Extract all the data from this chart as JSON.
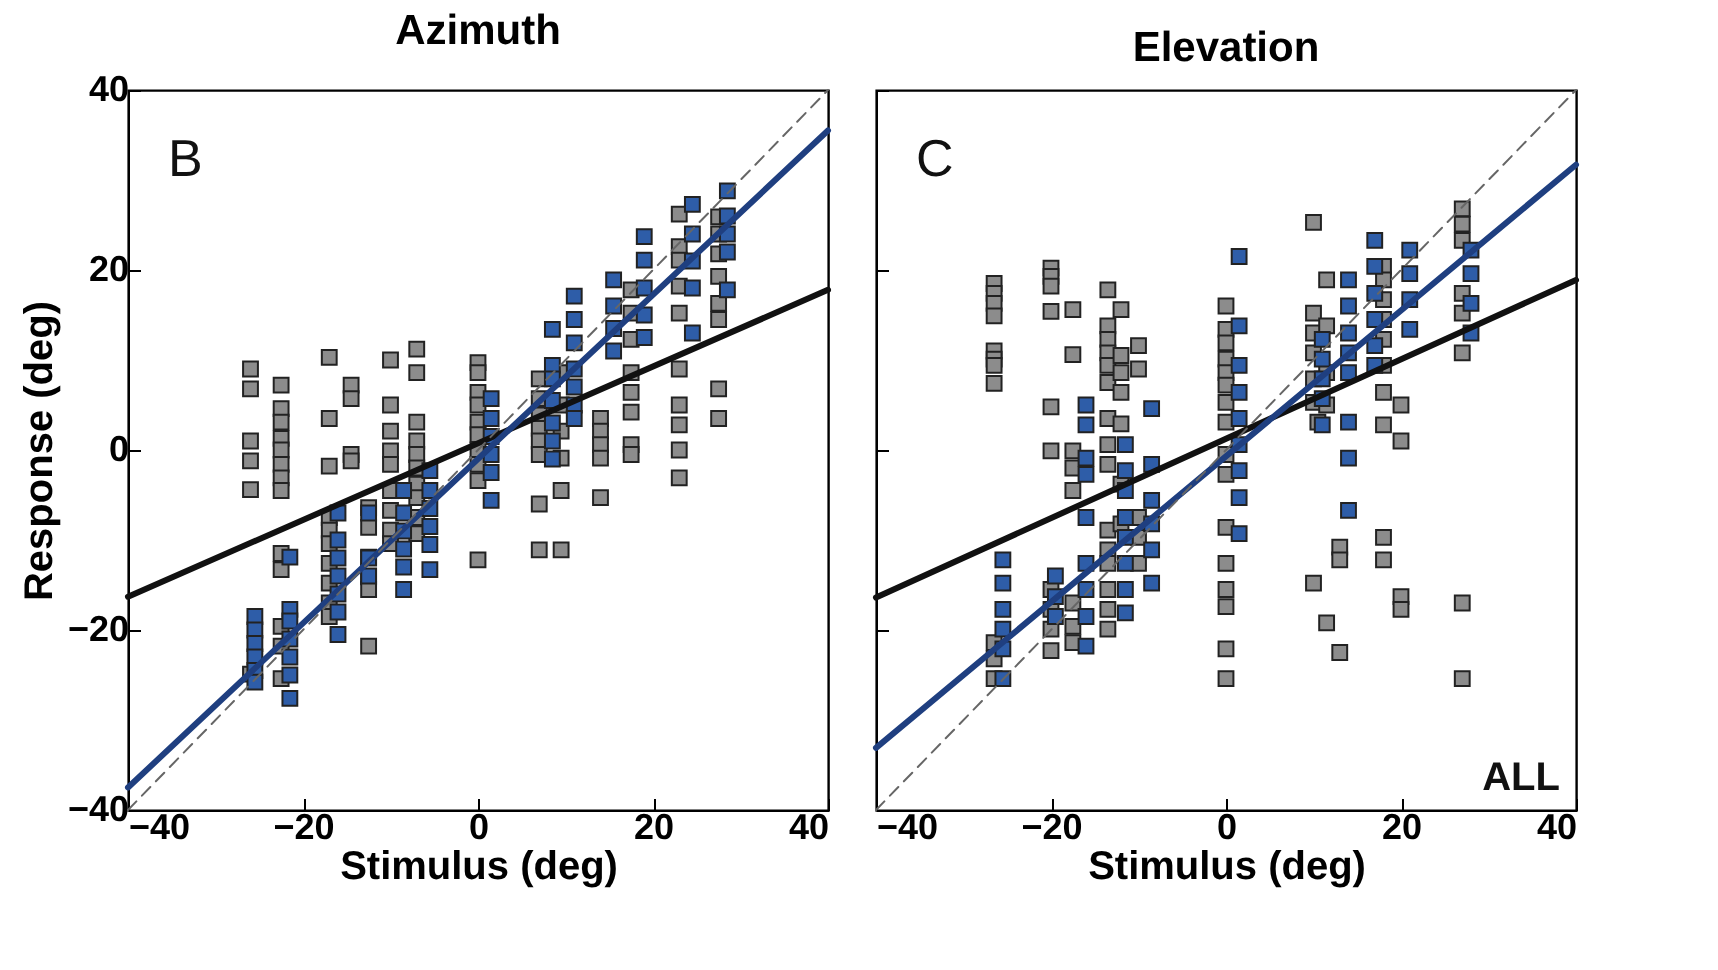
{
  "chart_data": [
    {
      "type": "scatter",
      "title": "Azimuth",
      "xlabel": "Stimulus (deg)",
      "ylabel": "Response (deg)",
      "xlim": [
        -40,
        40
      ],
      "ylim": [
        -40,
        40
      ],
      "xticks": [
        -40,
        -20,
        0,
        20,
        40
      ],
      "yticks": [
        -40,
        -20,
        0,
        20,
        40
      ],
      "grid": false,
      "annotations": [
        "B"
      ],
      "series": [
        {
          "marker": "square",
          "color": "#8c8c8c",
          "x": [
            -26,
            -26,
            -26,
            -26,
            -26,
            -26,
            -22.5,
            -22.5,
            -22.5,
            -22.5,
            -22.5,
            -22.5,
            -22.5,
            -22.5,
            -22.5,
            -22.5,
            -22.5,
            -22.5,
            -22.5,
            -17,
            -17,
            -17,
            -17,
            -17,
            -17,
            -17,
            -17,
            -17,
            -17,
            -14.5,
            -14.5,
            -14.5,
            -14.5,
            -12.5,
            -12.5,
            -12.5,
            -12.5,
            -12.5,
            -12.5,
            -10,
            -10,
            -10,
            -10,
            -10,
            -10,
            -10,
            -10,
            -10,
            -7,
            -7,
            -7,
            -7,
            -7,
            -7,
            -7,
            -7,
            -7,
            -7,
            0,
            0,
            0,
            0,
            0,
            0,
            0,
            0,
            0,
            0,
            7,
            7,
            7,
            7,
            7,
            7,
            7,
            7,
            9.5,
            9.5,
            9.5,
            9.5,
            9.5,
            9.5,
            14,
            14,
            14,
            14,
            14,
            17.5,
            17.5,
            17.5,
            17.5,
            17.5,
            17.5,
            17.5,
            17.5,
            23,
            23,
            23,
            23,
            23,
            23,
            23,
            23,
            23,
            23,
            27.5,
            27.5,
            27.5,
            27.5,
            27.5,
            27.5,
            27.5,
            27.5
          ],
          "values": [
            9,
            6.8,
            1,
            -1.2,
            -4.4,
            -24.9,
            7.2,
            4.6,
            3.1,
            1.3,
            0,
            -1.6,
            -3.1,
            -4.5,
            -11.5,
            -13.3,
            -19.6,
            -21.8,
            -25.4,
            10.3,
            3.5,
            -1.8,
            -7.5,
            -8.9,
            -10.4,
            -12.6,
            -14.8,
            -17,
            -18.5,
            7.2,
            5.7,
            -0.5,
            -1.2,
            -6.4,
            -8.6,
            -11.9,
            -14.1,
            -15.5,
            -21.8,
            10,
            5,
            2.1,
            -0.1,
            -1.6,
            -4.5,
            -6.7,
            -8.9,
            -10.4,
            11.2,
            8.6,
            3.1,
            1,
            -0.5,
            -2,
            -3.8,
            -5.3,
            -7.5,
            -9.3,
            9.7,
            8.6,
            6.4,
            5,
            3.1,
            1.7,
            0,
            -1.6,
            -3.4,
            -12.2,
            7.9,
            5.7,
            3.9,
            2.4,
            1,
            -0.5,
            -6,
            -11.1,
            8.6,
            5,
            2.1,
            -0.9,
            -4.5,
            -11.1,
            3.5,
            2.1,
            0.6,
            -0.9,
            -5.3,
            17.8,
            15.2,
            12.3,
            8.6,
            6.4,
            4.2,
            0.6,
            -0.5,
            26.2,
            22.6,
            21.1,
            18.2,
            15.2,
            9,
            5,
            2.8,
            0,
            -3.1,
            25.9,
            24,
            21.8,
            19.3,
            16.3,
            14.5,
            6.8,
            3.5
          ]
        },
        {
          "marker": "square",
          "color": "#2e5da8",
          "x": [
            -25.5,
            -25.5,
            -25.5,
            -25.5,
            -25.5,
            -25.5,
            -21.5,
            -21.5,
            -21.5,
            -21.5,
            -21.5,
            -21.5,
            -21.5,
            -16,
            -16,
            -16,
            -16,
            -16,
            -16,
            -16,
            -12.5,
            -12.5,
            -12.5,
            -8.5,
            -8.5,
            -8.5,
            -8.5,
            -8.5,
            -8.5,
            -5.5,
            -5.5,
            -5.5,
            -5.5,
            -5.5,
            -5.5,
            1.5,
            1.5,
            1.5,
            1.5,
            1.5,
            1.5,
            8.5,
            8.5,
            8.5,
            8.5,
            8.5,
            8.5,
            8.5,
            11,
            11,
            11,
            11,
            11,
            11,
            11,
            15.5,
            15.5,
            15.5,
            15.5,
            19,
            19,
            19,
            19,
            19,
            24.5,
            24.5,
            24.5,
            24.5,
            24.5,
            28.5,
            28.5,
            28.5,
            28.5,
            28.5
          ],
          "values": [
            -18.5,
            -20,
            -21.5,
            -23,
            -24.5,
            -25.8,
            -11.9,
            -17.7,
            -19,
            -21,
            -23,
            -25,
            -27.6,
            -7,
            -10,
            -12,
            -14,
            -16,
            -18,
            -20.5,
            -7,
            -12,
            -14,
            -4.5,
            -7,
            -9,
            -11,
            -13,
            -15.5,
            -2.3,
            -4.5,
            -6.5,
            -8.5,
            -10.5,
            -13.3,
            5.7,
            3.5,
            1.5,
            -0.5,
            -2.5,
            -5.6,
            13.4,
            9.4,
            7.9,
            5.5,
            3,
            1,
            -1,
            17.1,
            14.5,
            11.9,
            9,
            7,
            5,
            3.5,
            18.9,
            16,
            13.5,
            11,
            23.7,
            21.1,
            18,
            15,
            12.5,
            27.3,
            24,
            21,
            18,
            13,
            28.8,
            26,
            24,
            22,
            17.8
          ]
        },
        {
          "type": "line",
          "color": "#111111",
          "x": [
            -40,
            40
          ],
          "values": [
            -16.3,
            17.8
          ]
        },
        {
          "type": "line",
          "color": "#1f3f80",
          "x": [
            -40,
            40
          ],
          "values": [
            -37.5,
            35.5
          ]
        },
        {
          "type": "line",
          "color": "#666666",
          "line_style": "dashed",
          "x": [
            -40,
            40
          ],
          "values": [
            -40,
            40
          ]
        }
      ]
    },
    {
      "type": "scatter",
      "title": "Elevation",
      "xlabel": "Stimulus (deg)",
      "xlim": [
        -40,
        40
      ],
      "ylim": [
        -40,
        40
      ],
      "xticks": [
        -40,
        -20,
        0,
        20,
        40
      ],
      "yticks": [
        -40,
        -20,
        0,
        20,
        40
      ],
      "tick_labels": "x",
      "grid": false,
      "annotations": [
        "C",
        "ALL"
      ],
      "series": [
        {
          "marker": "square",
          "color": "#8c8c8c",
          "x": [
            -26.5,
            -26.5,
            -26.5,
            -26.5,
            -26.5,
            -26.5,
            -26.5,
            -26.5,
            -26.5,
            -26.5,
            -26.5,
            -20,
            -20,
            -20,
            -20,
            -20,
            -20,
            -20,
            -20,
            -20,
            -20,
            -17.5,
            -17.5,
            -17.5,
            -17.5,
            -17.5,
            -17.5,
            -17.5,
            -17.5,
            -13.5,
            -13.5,
            -13.5,
            -13.5,
            -13.5,
            -13.5,
            -13.5,
            -13.5,
            -13.5,
            -13.5,
            -13.5,
            -13.5,
            -13.5,
            -13.5,
            -13.5,
            -12,
            -12,
            -12,
            -12,
            -12,
            -12,
            -12,
            -10,
            -10,
            -10,
            -10,
            -10,
            0,
            0,
            0,
            0,
            0,
            0,
            0,
            0,
            0,
            0,
            0,
            0,
            0,
            0,
            0,
            0,
            10,
            10,
            10,
            10,
            10,
            10,
            10,
            10.5,
            11.5,
            11.5,
            11.5,
            11.5,
            11.5,
            13,
            13,
            13,
            18,
            18,
            18,
            18,
            18,
            18,
            18,
            18,
            18,
            18,
            20,
            20,
            20,
            20,
            27,
            27,
            27,
            27,
            27,
            27,
            27,
            27
          ],
          "values": [
            18.5,
            17.4,
            16.3,
            14.9,
            11,
            10.1,
            9.4,
            7.4,
            -21.4,
            -23.2,
            -25.4,
            20.2,
            19.3,
            18.2,
            15.4,
            4.8,
            -0.1,
            -15.5,
            -17.7,
            -19.9,
            -22.3,
            15.6,
            10.6,
            -0.1,
            -2,
            -4.5,
            -17,
            -19.6,
            -21.4,
            17.8,
            13.8,
            12.3,
            10.8,
            9.4,
            7.5,
            3.5,
            0.6,
            -1.6,
            -8.9,
            -11.1,
            -12.6,
            -15.5,
            -17.7,
            -19.9,
            15.6,
            10.5,
            8.6,
            6.4,
            2.9,
            -3.8,
            -8.2,
            11.6,
            9,
            -7.5,
            -9.7,
            -12.6,
            16,
            13.4,
            11.9,
            10.1,
            8.6,
            7.2,
            5.3,
            3.1,
            -0.5,
            -2.7,
            -8.6,
            -12.6,
            -15.5,
            -17.4,
            -22.1,
            -25.4,
            25.3,
            15.2,
            13,
            10.8,
            7.9,
            5.3,
            -14.8,
            3.1,
            18.9,
            13.8,
            8.6,
            5,
            -19.2,
            -10.8,
            -12.2,
            -22.5,
            20.4,
            18.9,
            16.7,
            14.5,
            12.3,
            9.4,
            6.4,
            2.8,
            -9.7,
            -12.2,
            5,
            1,
            -16.3,
            -17.7,
            26.8,
            25.1,
            23.3,
            17.4,
            15.2,
            10.8,
            -17,
            -25.4
          ]
        },
        {
          "marker": "square",
          "color": "#2e5da8",
          "x": [
            -25.5,
            -25.5,
            -25.5,
            -25.5,
            -25.5,
            -25.5,
            -19.5,
            -19.5,
            -19.5,
            -16,
            -16,
            -16,
            -16,
            -16,
            -16,
            -16,
            -16,
            -16,
            -11.5,
            -11.5,
            -11.5,
            -11.5,
            -11.5,
            -11.5,
            -11.5,
            -11.5,
            -8.5,
            -8.5,
            -8.5,
            -8.5,
            -8.5,
            -8.5,
            1.5,
            1.5,
            1.5,
            1.5,
            1.5,
            1.5,
            1.5,
            1.5,
            1.5,
            11,
            11,
            11,
            11,
            11,
            14,
            14,
            14,
            14,
            14,
            14,
            14,
            14,
            17,
            17,
            17,
            17,
            17,
            17,
            21,
            21,
            21,
            21,
            28,
            28,
            28,
            28
          ],
          "values": [
            -12.2,
            -14.8,
            -17.7,
            -19.9,
            -22.1,
            -25.4,
            -14,
            -16.3,
            -18.5,
            5,
            2.8,
            -0.9,
            -2.7,
            -7.5,
            -12.6,
            -15.5,
            -18.5,
            -21.8,
            0.6,
            -2.3,
            -4.5,
            -7.5,
            -9.7,
            -12.6,
            -15.5,
            -18.1,
            4.6,
            -1.6,
            -5.6,
            -8.2,
            -11.1,
            -14.8,
            21.5,
            13.8,
            9.4,
            6.4,
            3.5,
            0.6,
            -2.3,
            -5.3,
            -9.3,
            12.3,
            10.1,
            7.9,
            5.7,
            2.8,
            18.9,
            16,
            13,
            10.8,
            8.6,
            3.1,
            -0.9,
            -6.7,
            23.3,
            20.4,
            17.4,
            14.5,
            11.6,
            9.4,
            22.2,
            19.6,
            16.7,
            13.4,
            22.2,
            19.6,
            16.3,
            13
          ]
        },
        {
          "type": "line",
          "color": "#111111",
          "x": [
            -40,
            40
          ],
          "values": [
            -16.4,
            18.9
          ]
        },
        {
          "type": "line",
          "color": "#1f3f80",
          "x": [
            -40,
            40
          ],
          "values": [
            -33.1,
            31.7
          ]
        },
        {
          "type": "line",
          "color": "#666666",
          "line_style": "dashed",
          "x": [
            -40,
            40
          ],
          "values": [
            -40,
            40
          ]
        }
      ]
    }
  ]
}
